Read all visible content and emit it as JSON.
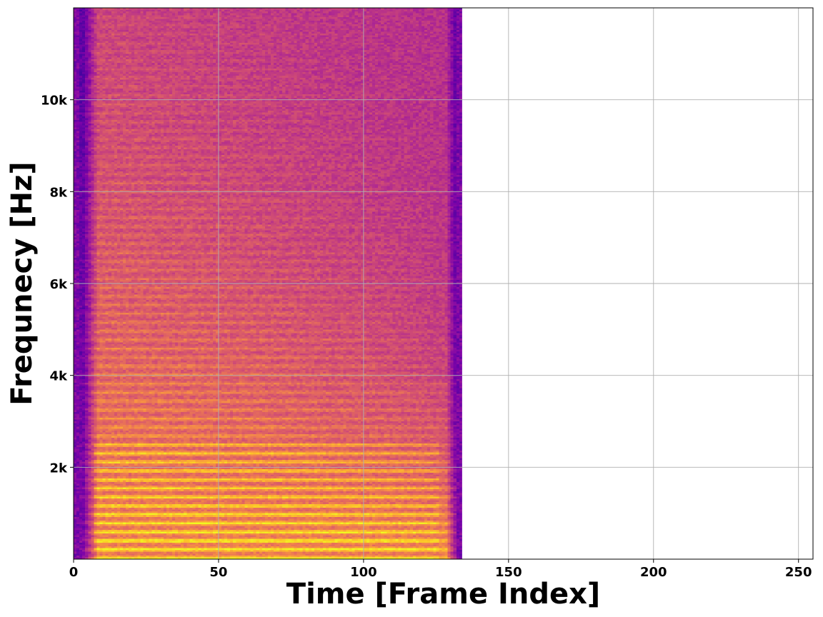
{
  "chart_data": {
    "type": "heatmap",
    "title": "",
    "xlabel": "Time [Frame Index]",
    "ylabel": "Frequnecy [Hz]",
    "xlim": [
      0,
      255
    ],
    "ylim": [
      0,
      12000
    ],
    "x_ticks": [
      {
        "value": 0,
        "label": "0"
      },
      {
        "value": 50,
        "label": "50"
      },
      {
        "value": 100,
        "label": "100"
      },
      {
        "value": 150,
        "label": "150"
      },
      {
        "value": 200,
        "label": "200"
      },
      {
        "value": 250,
        "label": "250"
      }
    ],
    "y_ticks": [
      {
        "value": 2000,
        "label": "2k"
      },
      {
        "value": 4000,
        "label": "4k"
      },
      {
        "value": 6000,
        "label": "6k"
      },
      {
        "value": 8000,
        "label": "8k"
      },
      {
        "value": 10000,
        "label": "10k"
      }
    ],
    "grid": true,
    "colormap": "plasma",
    "signal_frames": [
      0,
      134
    ],
    "harmonic_spacing_hz": 190,
    "colors": {
      "low": "#4b03a7",
      "mid": "#cc4778",
      "high": "#f0f921"
    }
  }
}
